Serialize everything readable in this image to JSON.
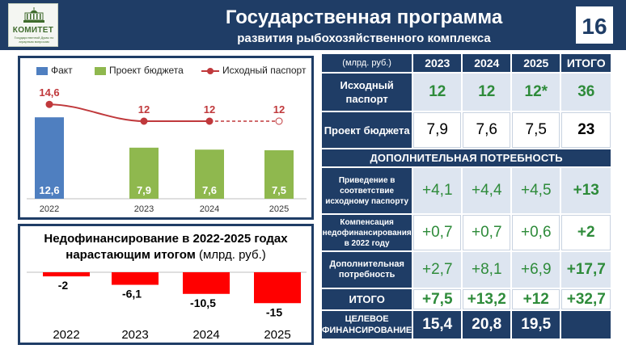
{
  "header": {
    "logo_title": "КОМИТЕТ",
    "logo_subtitle": "Государственной Думы по аграрным вопросам",
    "title_line1": "Государственная программа",
    "title_line2": "развития рыбохозяйственного комплекса",
    "page_number": "16"
  },
  "chart_data": [
    {
      "type": "bar",
      "categories": [
        "2022",
        "2023",
        "2024",
        "2025"
      ],
      "series": [
        {
          "name": "Факт",
          "type": "bar",
          "color": "#4f7fc0",
          "values": [
            12.6,
            null,
            null,
            null
          ],
          "labels": [
            "12,6",
            "",
            "",
            ""
          ]
        },
        {
          "name": "Проект бюджета",
          "type": "bar",
          "color": "#8fb84e",
          "values": [
            null,
            7.9,
            7.6,
            7.5
          ],
          "labels": [
            "",
            "7,9",
            "7,6",
            "7,5"
          ]
        },
        {
          "name": "Исходный паспорт",
          "type": "line",
          "color": "#c0393c",
          "values": [
            14.6,
            12,
            12,
            12
          ],
          "labels": [
            "14,6",
            "12",
            "12",
            "12"
          ],
          "dashed_last_segment": true
        }
      ],
      "ylim": [
        0,
        18
      ],
      "grid": false,
      "legend": "top"
    },
    {
      "type": "bar",
      "title": "Недофинансирование в 2022-2025 годах",
      "title_line2": "нарастающим итогом",
      "title_unit": "(млрд. руб.)",
      "categories": [
        "2022",
        "2023",
        "2024",
        "2025"
      ],
      "values": [
        -2,
        -6.1,
        -10.5,
        -15
      ],
      "labels": [
        "-2",
        "-6,1",
        "-10,5",
        "-15"
      ],
      "color": "#ff0000",
      "ylim": [
        -20,
        0
      ]
    },
    {
      "type": "table",
      "unit_label": "(млрд. руб.)",
      "columns": [
        "2023",
        "2024",
        "2025",
        "ИТОГО"
      ],
      "rows": [
        {
          "label": "Исходный паспорт",
          "values": [
            "12",
            "12",
            "12*",
            "36"
          ]
        },
        {
          "label": "Проект бюджета",
          "values": [
            "7,9",
            "7,6",
            "7,5",
            "23"
          ]
        },
        {
          "section": "ДОПОЛНИТЕЛЬНАЯ ПОТРЕБНОСТЬ"
        },
        {
          "label": "Приведение в соответствие исходному паспорту",
          "values": [
            "+4,1",
            "+4,4",
            "+4,5",
            "+13"
          ]
        },
        {
          "label": "Компенсация недофинансирования в 2022 году",
          "values": [
            "+0,7",
            "+0,7",
            "+0,6",
            "+2"
          ]
        },
        {
          "label": "Дополнительная потребность",
          "values": [
            "+2,7",
            "+8,1",
            "+6,9",
            "+17,7"
          ]
        },
        {
          "label": "ИТОГО",
          "values": [
            "+7,5",
            "+13,2",
            "+12",
            "+32,7"
          ]
        },
        {
          "label": "ЦЕЛЕВОЕ ФИНАНСИРОВАНИЕ",
          "values": [
            "15,4",
            "20,8",
            "19,5",
            ""
          ]
        }
      ]
    }
  ]
}
